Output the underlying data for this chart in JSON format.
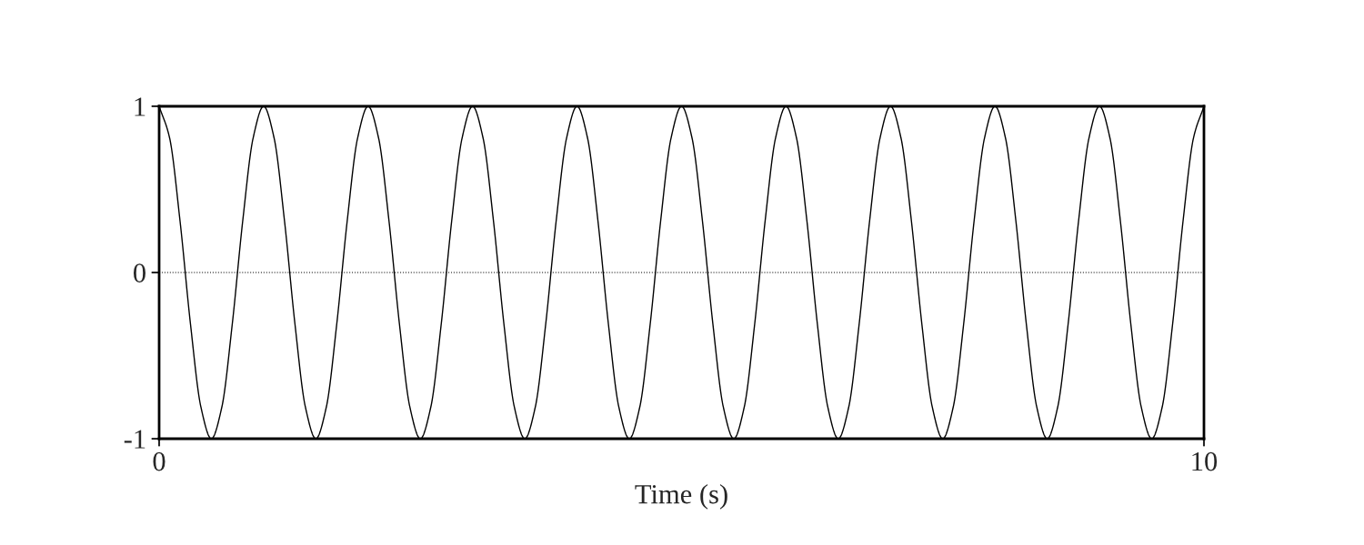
{
  "chart_data": {
    "type": "line",
    "xlabel": "Time (s)",
    "x": [
      0,
      0.1,
      0.2,
      0.3,
      0.4,
      0.5,
      0.6,
      0.7,
      0.8,
      0.9,
      1,
      1.1,
      1.2,
      1.3,
      1.4,
      1.5,
      1.6,
      1.7,
      1.8,
      1.9,
      2,
      2.1,
      2.2,
      2.3,
      2.4,
      2.5,
      2.6,
      2.7,
      2.8,
      2.9,
      3,
      3.1,
      3.2,
      3.3,
      3.4,
      3.5,
      3.6,
      3.7,
      3.8,
      3.9,
      4,
      4.1,
      4.2,
      4.3,
      4.4,
      4.5,
      4.6,
      4.7,
      4.8,
      4.9,
      5,
      5.1,
      5.2,
      5.3,
      5.4,
      5.5,
      5.6,
      5.7,
      5.8,
      5.9,
      6,
      6.1,
      6.2,
      6.3,
      6.4,
      6.5,
      6.6,
      6.7,
      6.8,
      6.9,
      7,
      7.1,
      7.2,
      7.3,
      7.4,
      7.5,
      7.6,
      7.7,
      7.8,
      7.9,
      8,
      8.1,
      8.2,
      8.3,
      8.4,
      8.5,
      8.6,
      8.7,
      8.8,
      8.9,
      9,
      9.1,
      9.2,
      9.3,
      9.4,
      9.5,
      9.6,
      9.7,
      9.8,
      9.9,
      10
    ],
    "series": [
      {
        "color": "#000000",
        "values": [
          1,
          0.81,
          0.31,
          -0.31,
          -0.81,
          -1,
          -0.81,
          -0.31,
          0.31,
          0.81,
          1,
          0.81,
          0.31,
          -0.31,
          -0.81,
          -1,
          -0.81,
          -0.31,
          0.31,
          0.81,
          1,
          0.81,
          0.31,
          -0.31,
          -0.81,
          -1,
          -0.81,
          -0.31,
          0.31,
          0.81,
          1,
          0.81,
          0.31,
          -0.31,
          -0.81,
          -1,
          -0.81,
          -0.31,
          0.31,
          0.81,
          1,
          0.81,
          0.31,
          -0.31,
          -0.81,
          -1,
          -0.81,
          -0.31,
          0.31,
          0.81,
          1,
          0.81,
          0.31,
          -0.31,
          -0.81,
          -1,
          -0.81,
          -0.31,
          0.31,
          0.81,
          1,
          0.81,
          0.31,
          -0.31,
          -0.81,
          -1,
          -0.81,
          -0.31,
          0.31,
          0.81,
          1,
          0.81,
          0.31,
          -0.31,
          -0.81,
          -1,
          -0.81,
          -0.31,
          0.31,
          0.81,
          1,
          0.81,
          0.31,
          -0.31,
          -0.81,
          -1,
          -0.81,
          -0.31,
          0.31,
          0.81,
          1,
          0.81,
          0.31,
          -0.31,
          -0.81,
          -1,
          -0.81,
          -0.31,
          0.31,
          0.81,
          1
        ]
      }
    ],
    "xlim": [
      0,
      10
    ],
    "ylim": [
      -1,
      1
    ],
    "xticks": [
      0,
      10
    ],
    "yticks": [
      -1,
      0,
      1
    ],
    "ref_lines": [
      {
        "axis": "y",
        "value": 0,
        "line_style": "dotted",
        "color": "#000000"
      }
    ],
    "grid": false,
    "legend": false
  }
}
